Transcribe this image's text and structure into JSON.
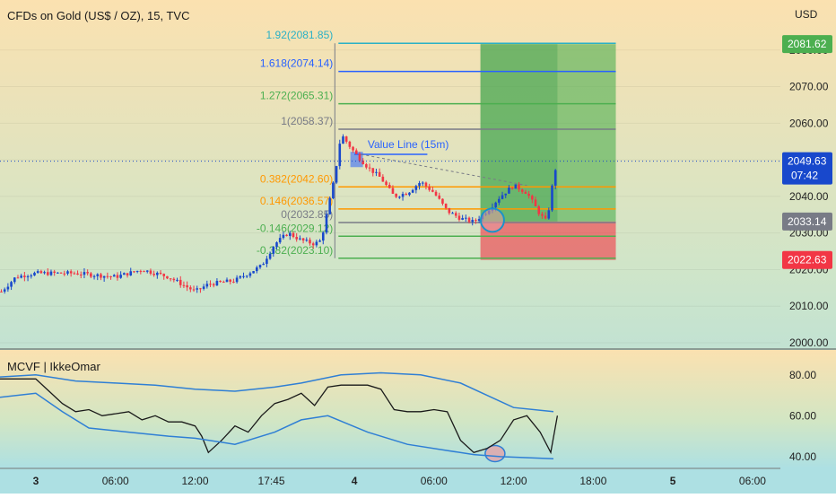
{
  "chart_title": "CFDs on Gold (US$ / OZ), 15, TVC",
  "currency": "USD",
  "indicator_title": "MCVF | IkkeOmar",
  "chart_data": [
    {
      "type": "candlestick",
      "title": "CFDs on Gold (US$ / OZ), 15, TVC",
      "y_axis_label": "USD",
      "ylim": [
        2000,
        2090
      ],
      "y_ticks": [
        2000,
        2010,
        2020,
        2030,
        2040,
        2050,
        2060,
        2070,
        2080
      ],
      "x_ticks": [
        "3",
        "06:00",
        "12:00",
        "17:45",
        "4",
        "06:00",
        "12:00",
        "18:00",
        "5",
        "06:00"
      ],
      "x_tick_times": [
        0,
        6,
        12,
        17.75,
        24,
        30,
        36,
        42,
        48,
        54
      ],
      "xlim": [
        -2.7,
        56.1
      ],
      "candles_path_approx": [
        [
          -2.6,
          2014
        ],
        [
          -1.5,
          2018
        ],
        [
          0,
          2019
        ],
        [
          3,
          2019
        ],
        [
          6,
          2018
        ],
        [
          8,
          2020
        ],
        [
          10,
          2018
        ],
        [
          12,
          2014
        ],
        [
          13,
          2016
        ],
        [
          15,
          2017
        ],
        [
          17,
          2021
        ],
        [
          18,
          2027
        ],
        [
          19,
          2030
        ],
        [
          20,
          2028
        ],
        [
          21,
          2027
        ],
        [
          21.5,
          2028
        ],
        [
          22.5,
          2045
        ],
        [
          23,
          2057
        ],
        [
          24,
          2052
        ],
        [
          25,
          2048
        ],
        [
          26,
          2045
        ],
        [
          27,
          2040
        ],
        [
          28,
          2041
        ],
        [
          29,
          2044
        ],
        [
          30,
          2041
        ],
        [
          31,
          2036
        ],
        [
          32,
          2034
        ],
        [
          33,
          2033
        ],
        [
          34,
          2036
        ],
        [
          35,
          2040
        ],
        [
          36,
          2043
        ],
        [
          37,
          2041
        ],
        [
          38,
          2035
        ],
        [
          38.5,
          2033
        ],
        [
          39,
          2045
        ],
        [
          39.3,
          2050
        ]
      ],
      "fibonacci_levels": [
        {
          "ratio": "1.92",
          "price": 2081.85,
          "label": "1.92(2081.85)",
          "color": "#2ab1c6"
        },
        {
          "ratio": "1.618",
          "price": 2074.14,
          "label": "1.618(2074.14)",
          "color": "#2962ff"
        },
        {
          "ratio": "1.272",
          "price": 2065.31,
          "label": "1.272(2065.31)",
          "color": "#4caf50"
        },
        {
          "ratio": "1",
          "price": 2058.37,
          "label": "1(2058.37)",
          "color": "#787b86"
        },
        {
          "ratio": "0.382",
          "price": 2042.6,
          "label": "0.382(2042.60)",
          "color": "#ff9800"
        },
        {
          "ratio": "0.146",
          "price": 2036.57,
          "label": "0.146(2036.57)",
          "color": "#ff9800"
        },
        {
          "ratio": "0",
          "price": 2032.85,
          "label": "0(2032.85)",
          "color": "#787b86"
        },
        {
          "ratio": "-0.146",
          "price": 2029.12,
          "label": "-0.146(2029.12)",
          "color": "#4caf50"
        },
        {
          "ratio": "-0.382",
          "price": 2023.1,
          "label": "-0.382(2023.10)",
          "color": "#4caf50"
        }
      ],
      "value_line": {
        "label": "Value Line (15m)",
        "price": 2051.5
      },
      "position": {
        "entry": 2033.14,
        "target": 2081.62,
        "stop": 2022.63,
        "start_time": 33.5,
        "end_time": 43.7
      },
      "price_tags": [
        {
          "value": "2081.62",
          "color": "#4caf50"
        },
        {
          "value": "2049.63",
          "sub": "07:42",
          "color": "#1848cc"
        },
        {
          "value": "2033.14",
          "color": "#787b86"
        },
        {
          "value": "2022.63",
          "color": "#f23645"
        }
      ],
      "last_price": 2049.63
    },
    {
      "type": "line",
      "title": "MCVF | IkkeOmar",
      "ylim": [
        36,
        90
      ],
      "y_ticks": [
        40,
        60,
        80
      ],
      "series": [
        {
          "color": "#1a1a1a",
          "values": [
            [
              -2.7,
              78
            ],
            [
              0,
              78
            ],
            [
              1,
              72
            ],
            [
              2,
              66
            ],
            [
              3,
              62
            ],
            [
              4,
              63
            ],
            [
              5,
              60
            ],
            [
              6,
              61
            ],
            [
              7,
              62
            ],
            [
              8,
              58
            ],
            [
              9,
              60
            ],
            [
              10,
              57
            ],
            [
              11,
              57
            ],
            [
              12,
              55
            ],
            [
              12.5,
              50
            ],
            [
              13,
              42
            ],
            [
              14,
              48
            ],
            [
              15,
              55
            ],
            [
              16,
              52
            ],
            [
              17,
              60
            ],
            [
              18,
              66
            ],
            [
              19,
              68
            ],
            [
              20,
              71
            ],
            [
              21,
              65
            ],
            [
              22,
              74
            ],
            [
              23,
              75
            ],
            [
              24,
              75
            ],
            [
              25,
              75
            ],
            [
              26,
              73
            ],
            [
              27,
              63
            ],
            [
              28,
              62
            ],
            [
              29,
              62
            ],
            [
              30,
              63
            ],
            [
              31,
              62
            ],
            [
              32,
              48
            ],
            [
              33,
              42
            ],
            [
              34,
              44
            ],
            [
              35,
              48
            ],
            [
              36,
              58
            ],
            [
              37,
              60
            ],
            [
              38,
              52
            ],
            [
              38.8,
              42
            ],
            [
              39.3,
              60
            ]
          ]
        },
        {
          "color": "#2f7fd5",
          "values": [
            [
              -2.7,
              79
            ],
            [
              0,
              80
            ],
            [
              3,
              77
            ],
            [
              6,
              76
            ],
            [
              9,
              75
            ],
            [
              12,
              73
            ],
            [
              15,
              72
            ],
            [
              18,
              74
            ],
            [
              20,
              76
            ],
            [
              23,
              80
            ],
            [
              26,
              81
            ],
            [
              29,
              80
            ],
            [
              32,
              76
            ],
            [
              34,
              70
            ],
            [
              36,
              64
            ],
            [
              39,
              62
            ]
          ]
        },
        {
          "color": "#2f7fd5",
          "values": [
            [
              -2.7,
              69
            ],
            [
              0,
              71
            ],
            [
              2,
              62
            ],
            [
              4,
              54
            ],
            [
              7,
              52
            ],
            [
              10,
              50
            ],
            [
              12,
              49
            ],
            [
              15,
              46
            ],
            [
              18,
              52
            ],
            [
              20,
              58
            ],
            [
              22,
              60
            ],
            [
              25,
              52
            ],
            [
              28,
              46
            ],
            [
              31,
              43
            ],
            [
              33,
              41
            ],
            [
              35,
              40
            ],
            [
              39,
              39
            ]
          ]
        }
      ]
    }
  ],
  "colors": {
    "up": "#1848cc",
    "down": "#f23645",
    "profit_zone": "#4caf50",
    "loss_zone": "#f23645"
  }
}
